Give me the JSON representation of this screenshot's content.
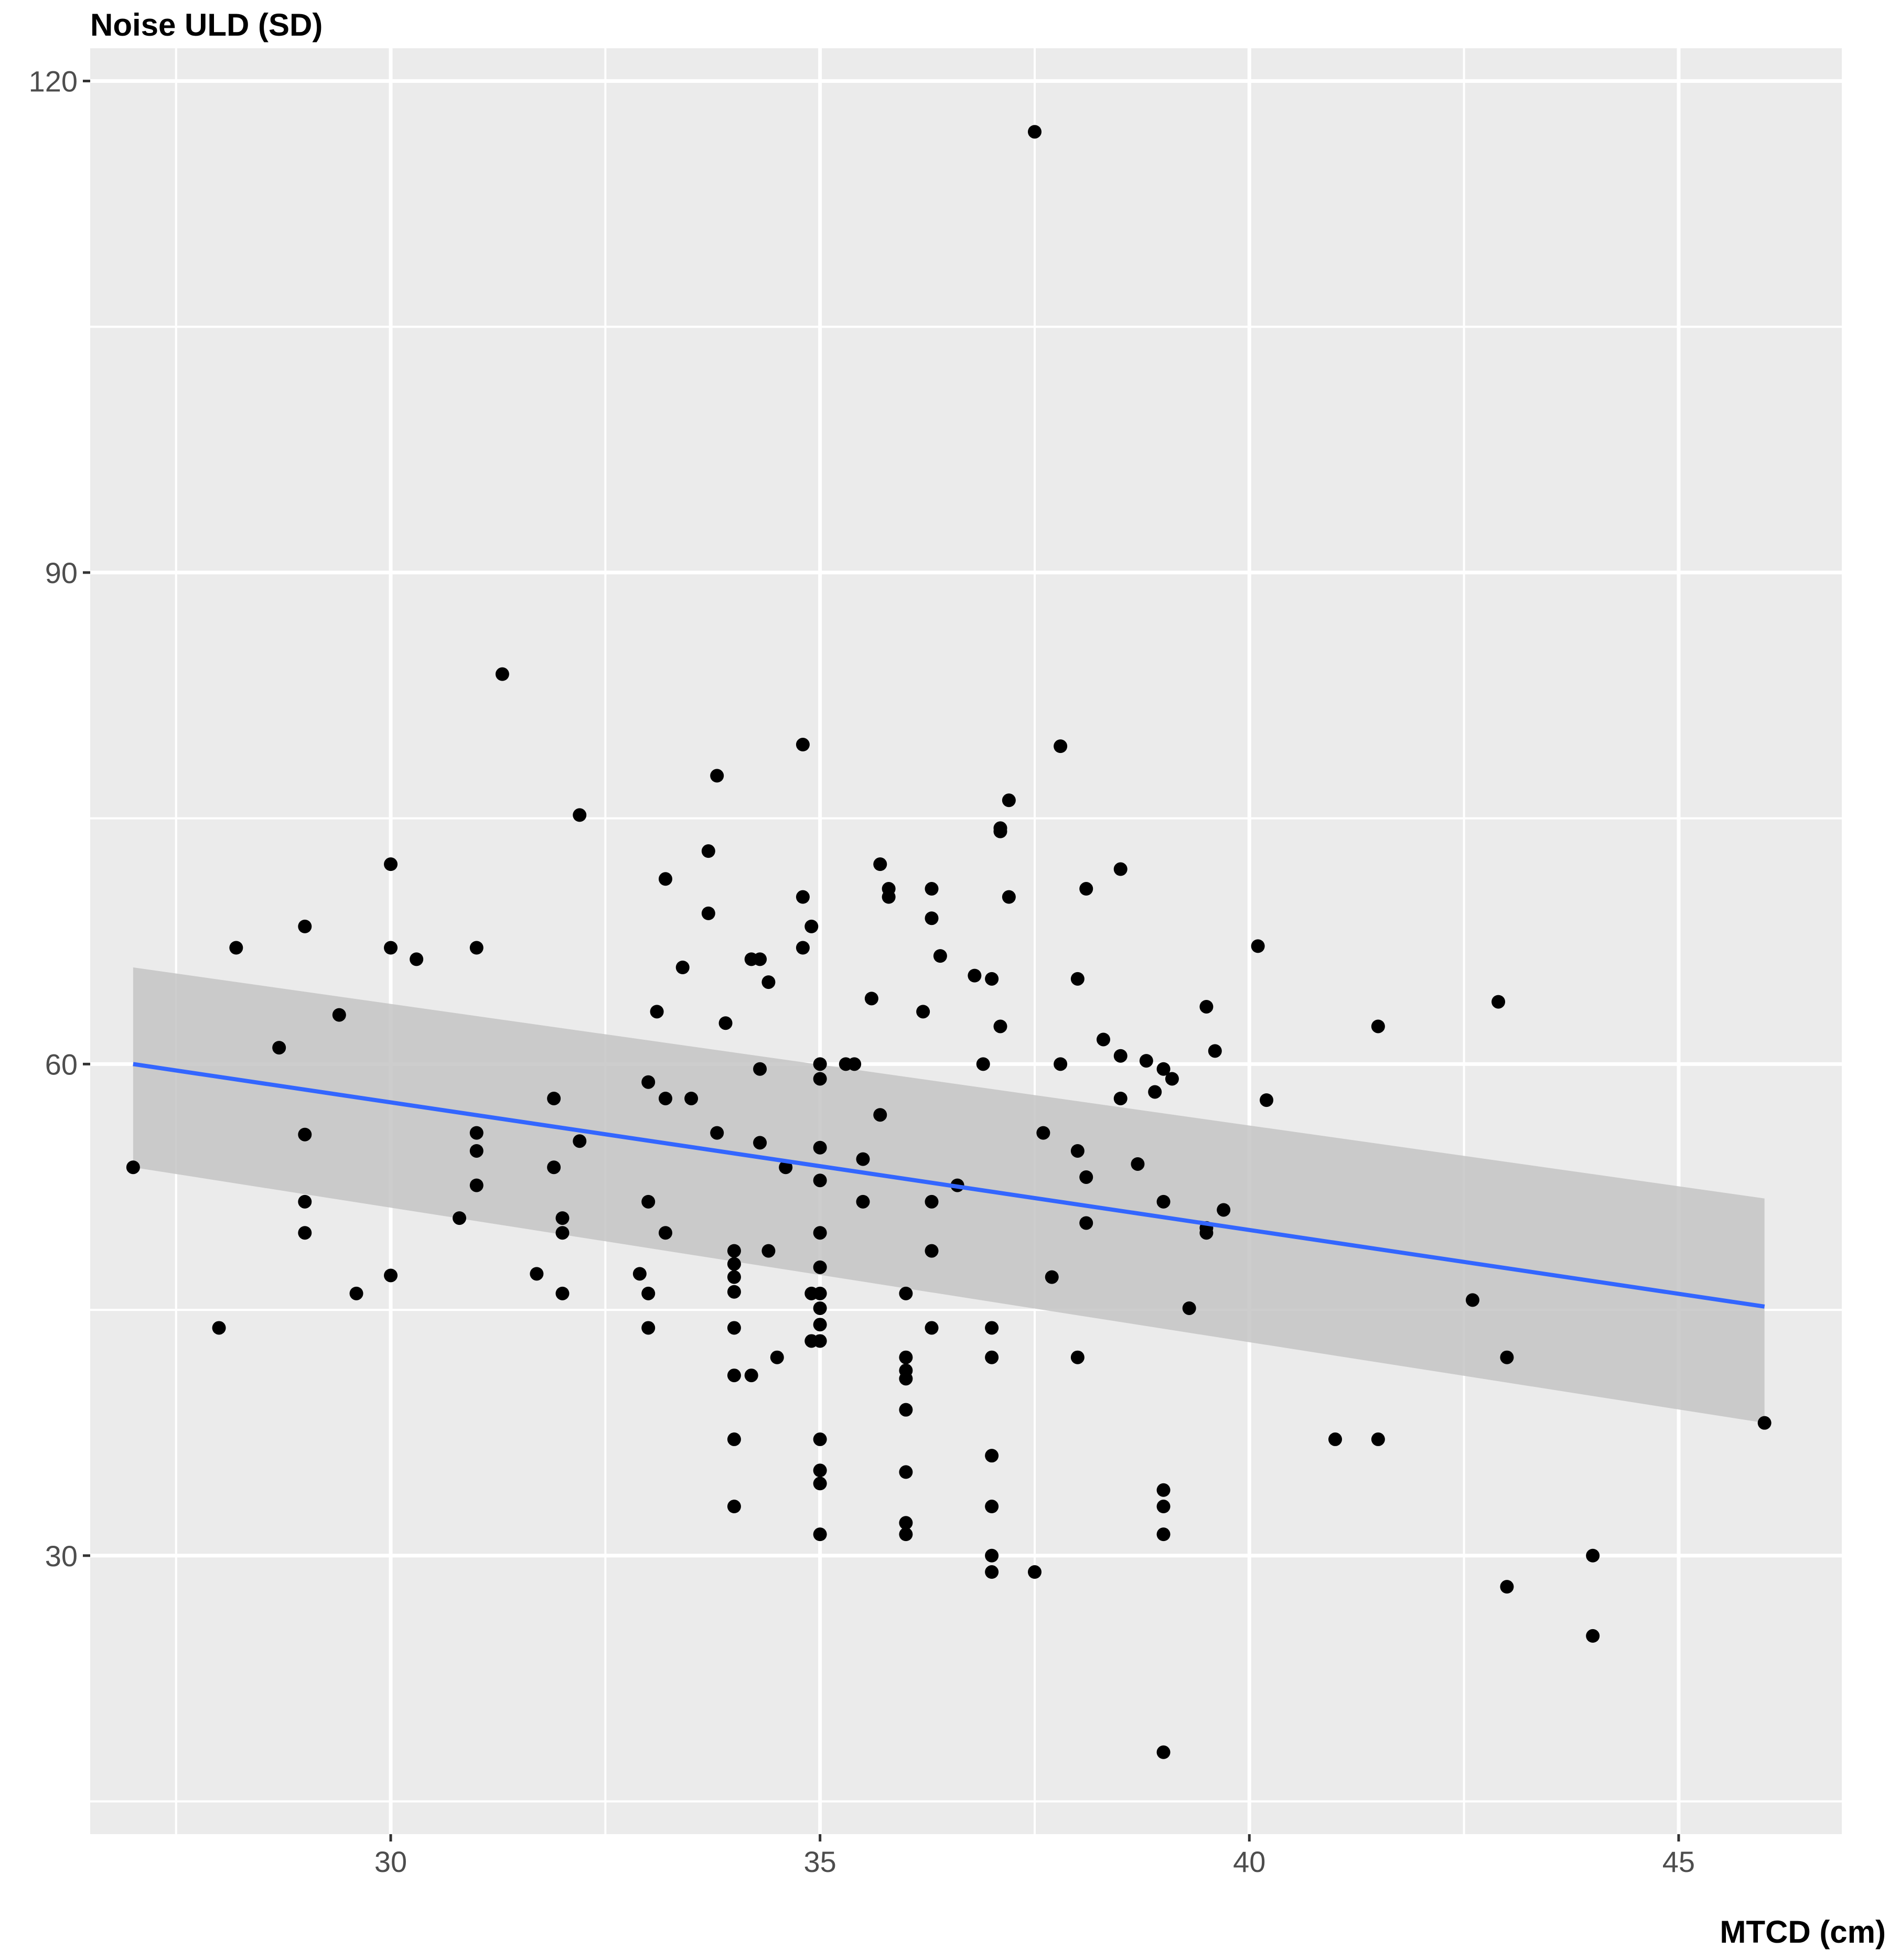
{
  "chart_data": {
    "type": "scatter",
    "title": "",
    "ylabel": "Noise ULD (SD)",
    "xlabel": "MTCD (cm)",
    "xlim": [
      26.5,
      46.9
    ],
    "ylim": [
      13.0,
      122.0
    ],
    "x_ticks": [
      30,
      35,
      40,
      45
    ],
    "x_tick_labels": [
      "30",
      "35",
      "40",
      "45"
    ],
    "x_minor_ticks": [
      27.5,
      32.5,
      37.5,
      42.5
    ],
    "y_ticks": [
      30,
      60,
      90,
      120
    ],
    "y_tick_labels": [
      "30",
      "60",
      "90",
      "120"
    ],
    "y_minor_ticks": [
      15,
      45,
      75,
      105
    ],
    "grid": true,
    "colors": {
      "panel": "#ebebeb",
      "grid": "#ffffff",
      "point": "#000000",
      "fit_line": "#3366ff",
      "band": "#c4c4c4"
    },
    "fit": {
      "method": "lm",
      "x": [
        27.0,
        46.0
      ],
      "y": [
        60.0,
        45.2
      ],
      "ci_lower": [
        53.7,
        38.1
      ],
      "ci_upper": [
        65.9,
        51.8
      ]
    },
    "points": [
      [
        27.0,
        53.7
      ],
      [
        28.0,
        43.9
      ],
      [
        28.2,
        67.1
      ],
      [
        28.7,
        61.0
      ],
      [
        29.0,
        68.4
      ],
      [
        29.0,
        55.7
      ],
      [
        29.0,
        51.6
      ],
      [
        29.0,
        49.7
      ],
      [
        29.4,
        63.0
      ],
      [
        29.6,
        46.0
      ],
      [
        30.0,
        72.2
      ],
      [
        30.0,
        67.1
      ],
      [
        30.0,
        47.1
      ],
      [
        30.3,
        66.4
      ],
      [
        30.8,
        50.6
      ],
      [
        31.0,
        67.1
      ],
      [
        31.0,
        55.8
      ],
      [
        31.0,
        54.7
      ],
      [
        31.0,
        52.6
      ],
      [
        31.3,
        83.8
      ],
      [
        31.7,
        47.2
      ],
      [
        31.9,
        57.9
      ],
      [
        31.9,
        53.7
      ],
      [
        32.0,
        50.6
      ],
      [
        32.0,
        49.7
      ],
      [
        32.0,
        46.0
      ],
      [
        32.2,
        75.2
      ],
      [
        32.2,
        55.3
      ],
      [
        32.9,
        47.2
      ],
      [
        33.0,
        58.9
      ],
      [
        33.0,
        51.6
      ],
      [
        33.0,
        46.0
      ],
      [
        33.0,
        43.9
      ],
      [
        33.1,
        63.2
      ],
      [
        33.2,
        71.3
      ],
      [
        33.2,
        57.9
      ],
      [
        33.2,
        49.7
      ],
      [
        33.4,
        65.9
      ],
      [
        33.5,
        57.9
      ],
      [
        33.7,
        73.0
      ],
      [
        33.7,
        69.2
      ],
      [
        33.8,
        77.6
      ],
      [
        33.8,
        55.8
      ],
      [
        33.9,
        62.5
      ],
      [
        34.0,
        48.6
      ],
      [
        34.0,
        47.8
      ],
      [
        34.0,
        47.0
      ],
      [
        34.0,
        46.1
      ],
      [
        34.0,
        43.9
      ],
      [
        34.0,
        41.0
      ],
      [
        34.0,
        37.1
      ],
      [
        34.0,
        33.0
      ],
      [
        34.2,
        66.4
      ],
      [
        34.2,
        41.0
      ],
      [
        34.3,
        66.4
      ],
      [
        34.3,
        59.7
      ],
      [
        34.3,
        55.2
      ],
      [
        34.4,
        65.0
      ],
      [
        34.4,
        48.6
      ],
      [
        34.5,
        42.1
      ],
      [
        34.6,
        53.7
      ],
      [
        34.8,
        79.5
      ],
      [
        34.8,
        70.2
      ],
      [
        34.8,
        67.1
      ],
      [
        34.9,
        68.4
      ],
      [
        34.9,
        46.0
      ],
      [
        34.9,
        43.1
      ],
      [
        35.0,
        60.0
      ],
      [
        35.0,
        59.1
      ],
      [
        35.0,
        54.9
      ],
      [
        35.0,
        52.9
      ],
      [
        35.0,
        49.7
      ],
      [
        35.0,
        47.6
      ],
      [
        35.0,
        46.0
      ],
      [
        35.0,
        45.1
      ],
      [
        35.0,
        44.1
      ],
      [
        35.0,
        43.1
      ],
      [
        35.0,
        37.1
      ],
      [
        35.0,
        35.2
      ],
      [
        35.0,
        34.4
      ],
      [
        35.0,
        31.3
      ],
      [
        35.3,
        60.0
      ],
      [
        35.4,
        60.0
      ],
      [
        35.5,
        54.2
      ],
      [
        35.5,
        51.6
      ],
      [
        35.6,
        64.0
      ],
      [
        35.7,
        72.2
      ],
      [
        35.7,
        56.9
      ],
      [
        35.8,
        70.7
      ],
      [
        35.8,
        70.2
      ],
      [
        36.0,
        46.0
      ],
      [
        36.0,
        42.1
      ],
      [
        36.0,
        41.3
      ],
      [
        36.0,
        40.8
      ],
      [
        36.0,
        38.9
      ],
      [
        36.0,
        35.1
      ],
      [
        36.0,
        32.0
      ],
      [
        36.0,
        31.3
      ],
      [
        36.2,
        63.2
      ],
      [
        36.3,
        70.7
      ],
      [
        36.3,
        68.9
      ],
      [
        36.3,
        51.6
      ],
      [
        36.3,
        48.6
      ],
      [
        36.3,
        43.9
      ],
      [
        36.4,
        66.6
      ],
      [
        36.6,
        52.6
      ],
      [
        36.8,
        65.4
      ],
      [
        36.9,
        60.0
      ],
      [
        37.0,
        65.2
      ],
      [
        37.0,
        43.9
      ],
      [
        37.0,
        42.1
      ],
      [
        37.0,
        36.1
      ],
      [
        37.0,
        33.0
      ],
      [
        37.0,
        30.0
      ],
      [
        37.0,
        29.0
      ],
      [
        37.1,
        74.4
      ],
      [
        37.1,
        74.2
      ],
      [
        37.1,
        62.3
      ],
      [
        37.2,
        76.1
      ],
      [
        37.2,
        70.2
      ],
      [
        37.5,
        116.9
      ],
      [
        37.5,
        29.0
      ],
      [
        37.6,
        55.8
      ],
      [
        37.7,
        47.0
      ],
      [
        37.8,
        79.4
      ],
      [
        37.8,
        60.0
      ],
      [
        38.0,
        65.2
      ],
      [
        38.0,
        54.7
      ],
      [
        38.0,
        42.1
      ],
      [
        38.1,
        70.7
      ],
      [
        38.1,
        53.1
      ],
      [
        38.1,
        50.3
      ],
      [
        38.3,
        61.5
      ],
      [
        38.5,
        71.9
      ],
      [
        38.5,
        60.5
      ],
      [
        38.5,
        57.9
      ],
      [
        38.7,
        53.9
      ],
      [
        38.8,
        60.2
      ],
      [
        38.9,
        58.3
      ],
      [
        39.0,
        59.7
      ],
      [
        39.0,
        51.6
      ],
      [
        39.0,
        34.0
      ],
      [
        39.0,
        33.0
      ],
      [
        39.0,
        31.3
      ],
      [
        39.0,
        18.0
      ],
      [
        39.1,
        59.1
      ],
      [
        39.3,
        45.1
      ],
      [
        39.5,
        63.5
      ],
      [
        39.5,
        50.0
      ],
      [
        39.5,
        49.7
      ],
      [
        39.6,
        60.8
      ],
      [
        39.7,
        51.1
      ],
      [
        40.1,
        67.2
      ],
      [
        40.2,
        57.8
      ],
      [
        41.0,
        37.1
      ],
      [
        41.5,
        62.3
      ],
      [
        41.5,
        37.1
      ],
      [
        42.6,
        45.6
      ],
      [
        42.9,
        63.8
      ],
      [
        43.0,
        42.1
      ],
      [
        43.0,
        28.1
      ],
      [
        44.0,
        30.0
      ],
      [
        44.0,
        25.1
      ],
      [
        46.0,
        38.1
      ]
    ]
  }
}
